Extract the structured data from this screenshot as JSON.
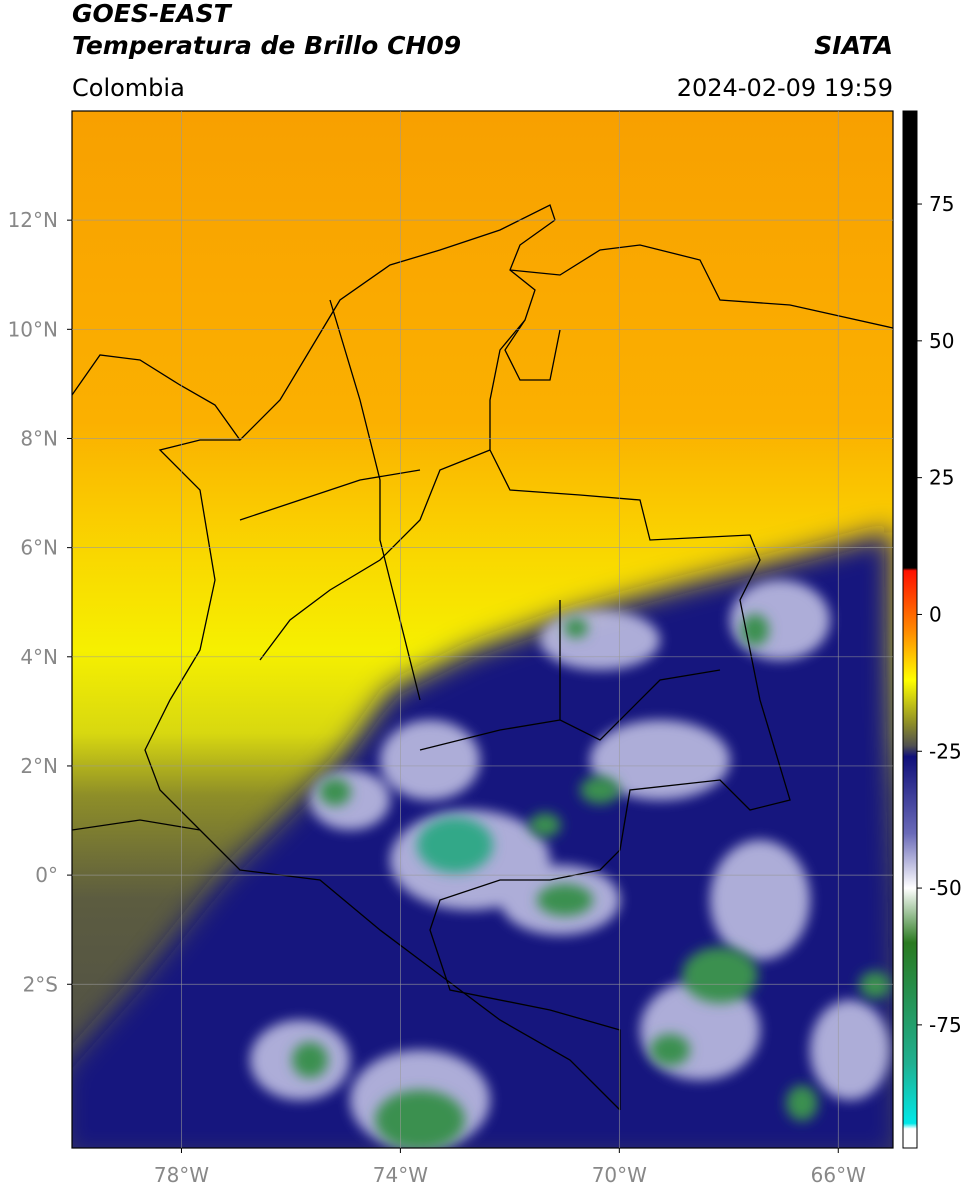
{
  "title": "GOES-EAST",
  "subtitle": "Temperatura de Brillo CH09",
  "source": "SIATA",
  "region": "Colombia",
  "datetime": "2024-02-09 19:59",
  "chart_data": {
    "type": "map",
    "xlim": [
      -80,
      -65
    ],
    "ylim": [
      -5,
      14
    ],
    "xticks": [
      {
        "value": -78,
        "label": "78°W"
      },
      {
        "value": -74,
        "label": "74°W"
      },
      {
        "value": -70,
        "label": "70°W"
      },
      {
        "value": -66,
        "label": "66°W"
      }
    ],
    "yticks": [
      {
        "value": 12,
        "label": "12°N"
      },
      {
        "value": 10,
        "label": "10°N"
      },
      {
        "value": 8,
        "label": "8°N"
      },
      {
        "value": 6,
        "label": "6°N"
      },
      {
        "value": 4,
        "label": "4°N"
      },
      {
        "value": 2,
        "label": "2°N"
      },
      {
        "value": 0,
        "label": "0°"
      },
      {
        "value": -2,
        "label": "2°S"
      }
    ],
    "grid": true,
    "colorbar": {
      "lim": [
        -97.5,
        92
      ],
      "ticks": [
        75,
        50,
        25,
        0,
        -25,
        -50,
        -75
      ],
      "stops": [
        {
          "value": 92,
          "color": "#000000"
        },
        {
          "value": 8.5,
          "color": "#000000"
        },
        {
          "value": 8,
          "color": "#ff1000"
        },
        {
          "value": -3,
          "color": "#ff8a00"
        },
        {
          "value": -12,
          "color": "#ffff00"
        },
        {
          "value": -20,
          "color": "#8c8c28"
        },
        {
          "value": -24,
          "color": "#505050"
        },
        {
          "value": -26,
          "color": "#10107a"
        },
        {
          "value": -40,
          "color": "#6a6ab8"
        },
        {
          "value": -50,
          "color": "#ffffff"
        },
        {
          "value": -60,
          "color": "#2a7a20"
        },
        {
          "value": -82,
          "color": "#20b090"
        },
        {
          "value": -93,
          "color": "#00e8e8"
        },
        {
          "value": -94,
          "color": "#ffffff"
        },
        {
          "value": -97.5,
          "color": "#ffffff"
        }
      ]
    }
  }
}
